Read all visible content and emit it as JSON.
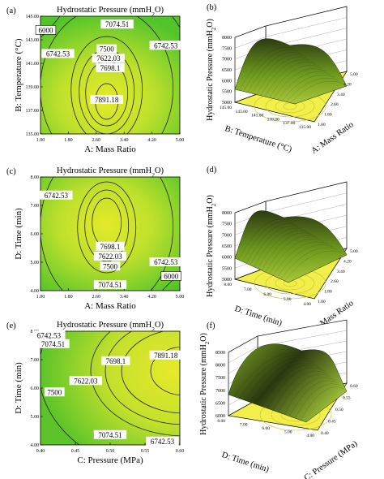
{
  "panels": [
    {
      "letter": "(a)",
      "kind": "contour",
      "title": "Hydrostatic Pressure (mmH",
      "title_sub": "2",
      "title_end": "O)",
      "xlabel": "A: Mass Ratio",
      "ylabel": "B: Temperature (°C)",
      "xticks": [
        "1.00",
        "1.80",
        "2.60",
        "3.40",
        "4.20",
        "5.00"
      ],
      "yticks": [
        "135.00",
        "137.00",
        "139.00",
        "141.00",
        "143.00",
        "145.00"
      ],
      "labels": [
        "7074.51",
        "6000",
        "6742.53",
        "6742.53",
        "7500",
        "7622.03",
        "7698.1",
        "7891.18"
      ]
    },
    {
      "letter": "(b)",
      "kind": "surface",
      "zlabel": "Hydrostatic Pressure (mmH",
      "zlabel_sub": "2",
      "zlabel_end": "O)",
      "zticks": [
        "5000",
        "5500",
        "6000",
        "6500",
        "7000",
        "7500",
        "8000"
      ],
      "xlabel": "B: Temperature (°C)",
      "ylabel": "A: Mass Ratio",
      "xticks": [
        "145.00",
        "143.00",
        "141.00",
        "139.00",
        "137.00",
        "135.00"
      ],
      "yticks": [
        "5.00",
        "4.20",
        "3.40",
        "2.60",
        "1.80",
        "1.00"
      ]
    },
    {
      "letter": "(c)",
      "kind": "contour",
      "title": "Hydrostatic Pressure (mmH",
      "title_sub": "2",
      "title_end": "O)",
      "xlabel": "A: Mass Ratio",
      "ylabel": "D: Time (min)",
      "xticks": [
        "1.00",
        "1.80",
        "2.60",
        "3.40",
        "4.20",
        "5.00"
      ],
      "yticks": [
        "4.00",
        "5.00",
        "6.00",
        "7.00",
        "8.00"
      ],
      "labels": [
        "6742.53",
        "7698.1",
        "7622.03",
        "7500",
        "6742.53",
        "6000",
        "7074.51"
      ]
    },
    {
      "letter": "(d)",
      "kind": "surface",
      "zlabel": "Hydrostatic Pressure (mmH",
      "zlabel_sub": "2",
      "zlabel_end": "O)",
      "zticks": [
        "5000",
        "5500",
        "6000",
        "6500",
        "7000",
        "7500",
        "8000"
      ],
      "xlabel": "D: Time (min)",
      "ylabel": "A: Mass Ratio",
      "xticks": [
        "8.00",
        "7.00",
        "6.00",
        "5.00",
        "4.00"
      ],
      "yticks": [
        "5.00",
        "4.20",
        "3.40",
        "2.60",
        "1.80",
        "1.00"
      ]
    },
    {
      "letter": "(e)",
      "kind": "contour",
      "title": "Hydrostatic Pressure (mmH",
      "title_sub": "2",
      "title_end": "O)",
      "xlabel": "C: Pressure (MPa)",
      "ylabel": "D: Time (min)",
      "xticks": [
        "0.40",
        "0.45",
        "0.50",
        "0.55",
        "0.60"
      ],
      "yticks": [
        "4.00",
        "5.00",
        "6.00",
        "7.00",
        "8.00"
      ],
      "labels": [
        "6742.53",
        "7074.51",
        "7698.1",
        "7891.18",
        "7622.03",
        "7500",
        "7074.51",
        "6742.53"
      ]
    },
    {
      "letter": "(f)",
      "kind": "surface",
      "zlabel": "Hydrostatic Pressure (mmH",
      "zlabel_sub": "2",
      "zlabel_end": "O)",
      "zticks": [
        "6000",
        "6500",
        "7000",
        "7500",
        "8000",
        "8500"
      ],
      "xlabel": "D: Time (min)",
      "ylabel": "C: Pressure (MPa)",
      "xticks": [
        "8.00",
        "7.00",
        "6.00",
        "5.00",
        "4.00"
      ],
      "yticks": [
        "0.60",
        "0.55",
        "0.50",
        "0.45",
        "0.40"
      ]
    }
  ],
  "chart_data": [
    {
      "type": "heatmap",
      "panel": "(a)",
      "title": "Hydrostatic Pressure (mmH2O)",
      "xlabel": "A: Mass Ratio",
      "ylabel": "B: Temperature (°C)",
      "xlim": [
        1.0,
        5.0
      ],
      "ylim": [
        135.0,
        145.0
      ],
      "contour_levels": [
        6000,
        6742.53,
        7074.51,
        7500,
        7622.03,
        7698.1,
        7891.18
      ],
      "annotations": [
        {
          "text": "7074.51",
          "x": 3.2,
          "y": 144.3
        },
        {
          "text": "6000",
          "x": 1.15,
          "y": 143.8
        },
        {
          "text": "6742.53",
          "x": 1.5,
          "y": 141.8
        },
        {
          "text": "6742.53",
          "x": 4.6,
          "y": 142.5
        },
        {
          "text": "7500",
          "x": 2.9,
          "y": 142.2
        },
        {
          "text": "7622.03",
          "x": 2.95,
          "y": 141.4
        },
        {
          "text": "7698.1",
          "x": 3.0,
          "y": 140.6
        },
        {
          "text": "7891.18",
          "x": 2.9,
          "y": 137.9
        }
      ],
      "optimum": {
        "x": 2.9,
        "y": 137.9,
        "value": 7891.18
      }
    },
    {
      "type": "surface",
      "panel": "(b)",
      "zlabel": "Hydrostatic Pressure (mmH2O)",
      "xlabel": "B: Temperature (°C)",
      "ylabel": "A: Mass Ratio",
      "xlim": [
        135.0,
        145.0
      ],
      "ylim": [
        1.0,
        5.0
      ],
      "zlim": [
        5000,
        8000
      ],
      "peak": {
        "B": 138.0,
        "A": 2.9,
        "z": 7891
      }
    },
    {
      "type": "heatmap",
      "panel": "(c)",
      "title": "Hydrostatic Pressure (mmH2O)",
      "xlabel": "A: Mass Ratio",
      "ylabel": "D: Time (min)",
      "xlim": [
        1.0,
        5.0
      ],
      "ylim": [
        4.0,
        8.0
      ],
      "contour_levels": [
        6000,
        6742.53,
        7074.51,
        7500,
        7622.03,
        7698.1
      ],
      "annotations": [
        {
          "text": "6742.53",
          "x": 1.45,
          "y": 7.35
        },
        {
          "text": "7698.1",
          "x": 3.0,
          "y": 5.55
        },
        {
          "text": "7622.03",
          "x": 3.0,
          "y": 5.2
        },
        {
          "text": "7500",
          "x": 3.0,
          "y": 4.85
        },
        {
          "text": "6742.53",
          "x": 4.6,
          "y": 5.0
        },
        {
          "text": "6000",
          "x": 4.75,
          "y": 4.5
        },
        {
          "text": "7074.51",
          "x": 3.0,
          "y": 4.2
        }
      ],
      "optimum": {
        "x": 2.9,
        "y": 6.4
      }
    },
    {
      "type": "surface",
      "panel": "(d)",
      "zlabel": "Hydrostatic Pressure (mmH2O)",
      "xlabel": "D: Time (min)",
      "ylabel": "A: Mass Ratio",
      "xlim": [
        4.0,
        8.0
      ],
      "ylim": [
        1.0,
        5.0
      ],
      "zlim": [
        5000,
        8000
      ],
      "peak": {
        "D": 6.4,
        "A": 2.9,
        "z": 7750
      }
    },
    {
      "type": "heatmap",
      "panel": "(e)",
      "title": "Hydrostatic Pressure (mmH2O)",
      "xlabel": "C: Pressure (MPa)",
      "ylabel": "D: Time (min)",
      "xlim": [
        0.4,
        0.6
      ],
      "ylim": [
        4.0,
        8.0
      ],
      "contour_levels": [
        6742.53,
        7074.51,
        7500,
        7622.03,
        7698.1,
        7891.18
      ],
      "annotations": [
        {
          "text": "6742.53",
          "x": 0.412,
          "y": 7.85
        },
        {
          "text": "7074.51",
          "x": 0.418,
          "y": 7.55
        },
        {
          "text": "7698.1",
          "x": 0.508,
          "y": 6.95
        },
        {
          "text": "7891.18",
          "x": 0.58,
          "y": 7.15
        },
        {
          "text": "7622.03",
          "x": 0.465,
          "y": 6.25
        },
        {
          "text": "7500",
          "x": 0.42,
          "y": 5.85
        },
        {
          "text": "7074.51",
          "x": 0.5,
          "y": 4.35
        },
        {
          "text": "6742.53",
          "x": 0.575,
          "y": 4.12
        }
      ],
      "optimum": {
        "x": 0.6,
        "y": 6.6,
        "value": 7891.18
      }
    },
    {
      "type": "surface",
      "panel": "(f)",
      "zlabel": "Hydrostatic Pressure (mmH2O)",
      "xlabel": "D: Time (min)",
      "ylabel": "C: Pressure (MPa)",
      "xlim": [
        4.0,
        8.0
      ],
      "ylim": [
        0.4,
        0.6
      ],
      "zlim": [
        6000,
        8500
      ],
      "peak": {
        "D": 6.6,
        "C": 0.6,
        "z": 8200
      }
    }
  ],
  "colors": {
    "contour_low": "#4cc62a",
    "contour_mid": "#b4dd2c",
    "contour_high": "#dfe82a",
    "surface_low": "#7aa020",
    "surface_high": "#2a3a10",
    "floor": "#f2ee4a",
    "line": "#000000"
  }
}
